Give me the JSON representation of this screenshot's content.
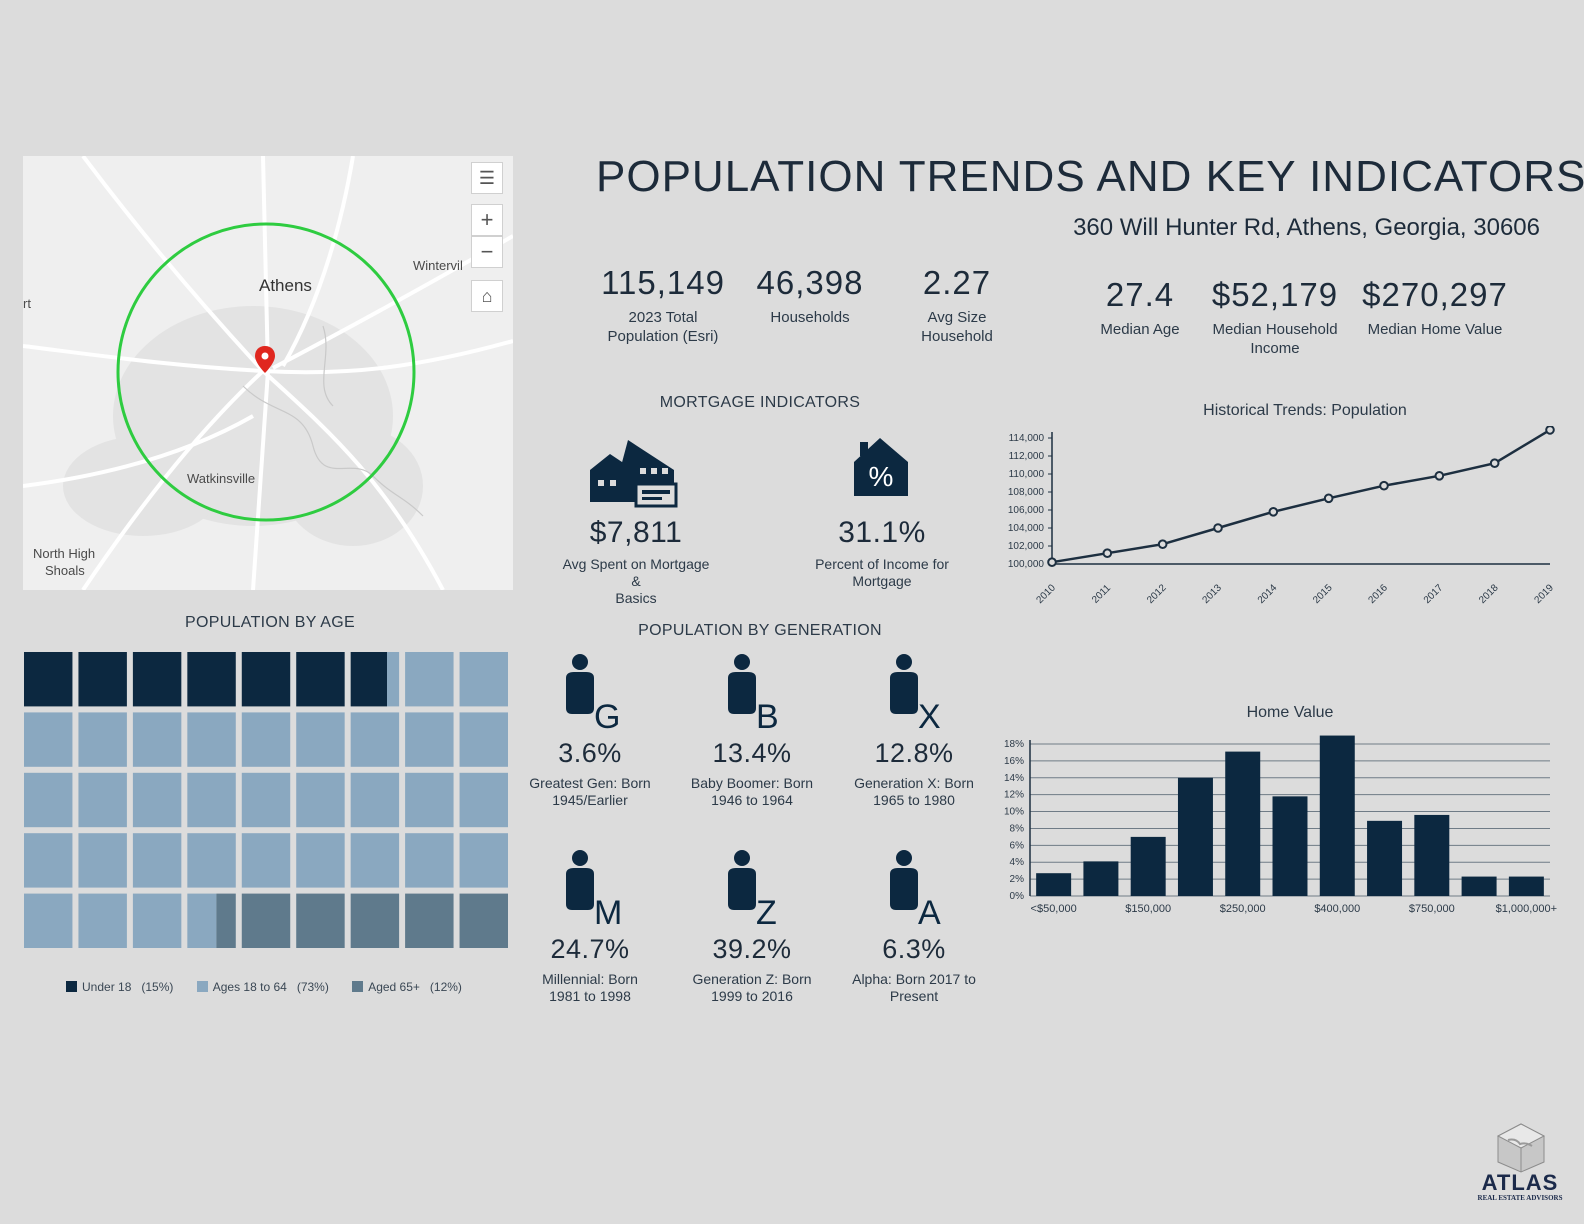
{
  "header": {
    "title": "POPULATION TRENDS AND KEY INDICATORS",
    "address": "360 Will Hunter Rd, Athens, Georgia, 30606"
  },
  "map": {
    "labels": {
      "athens": "Athens",
      "winterville": "Wintervil",
      "watkinsville": "Watkinsville",
      "north_high_shoals_1": "North High",
      "north_high_shoals_2": "Shoals",
      "edge": "rt"
    },
    "controls": {
      "list": "☰",
      "zoom_in": "+",
      "zoom_out": "−",
      "home": "⌂"
    },
    "ring_color": "#2ecc40",
    "pin_color": "#e0271f"
  },
  "stats": [
    {
      "value": "115,149",
      "label_1": "2023 Total",
      "label_2": "Population (Esri)"
    },
    {
      "value": "46,398",
      "label_1": "Households",
      "label_2": ""
    },
    {
      "value": "2.27",
      "label_1": "Avg Size",
      "label_2": "Household"
    },
    {
      "value": "27.4",
      "label_1": "Median Age",
      "label_2": ""
    },
    {
      "value": "$52,179",
      "label_1": "Median Household",
      "label_2": "Income"
    },
    {
      "value": "$270,297",
      "label_1": "Median Home Value",
      "label_2": ""
    }
  ],
  "mortgage": {
    "title": "MORTGAGE INDICATORS",
    "items": [
      {
        "value": "$7,811",
        "label_1": "Avg Spent on Mortgage &",
        "label_2": "Basics",
        "icon": "house-money-icon"
      },
      {
        "value": "31.1%",
        "label_1": "Percent of Income for",
        "label_2": "Mortgage",
        "icon": "house-percent-icon",
        "glyph": "%"
      }
    ]
  },
  "population_by_age": {
    "title": "POPULATION BY AGE",
    "legend": [
      {
        "label": "Under 18",
        "pct": "(15%)",
        "color": "#0c2840"
      },
      {
        "label": "Ages 18 to 64",
        "pct": "(73%)",
        "color": "#8aa8c0"
      },
      {
        "label": "Aged 65+",
        "pct": "(12%)",
        "color": "#5f7a8c"
      }
    ]
  },
  "generation": {
    "title": "POPULATION BY GENERATION",
    "items": [
      {
        "letter": "G",
        "value": "3.6%",
        "label_1": "Greatest Gen: Born",
        "label_2": "1945/Earlier"
      },
      {
        "letter": "B",
        "value": "13.4%",
        "label_1": "Baby Boomer: Born",
        "label_2": "1946 to 1964"
      },
      {
        "letter": "X",
        "value": "12.8%",
        "label_1": "Generation X: Born",
        "label_2": "1965 to 1980"
      },
      {
        "letter": "M",
        "value": "24.7%",
        "label_1": "Millennial: Born",
        "label_2": "1981 to 1998"
      },
      {
        "letter": "Z",
        "value": "39.2%",
        "label_1": "Generation Z: Born",
        "label_2": "1999 to 2016"
      },
      {
        "letter": "A",
        "value": "6.3%",
        "label_1": "Alpha: Born 2017 to",
        "label_2": "Present"
      }
    ]
  },
  "chart_data": [
    {
      "type": "waffle",
      "title": "POPULATION BY AGE",
      "grid": [
        9,
        5
      ],
      "series": [
        {
          "name": "Under 18",
          "value": 15,
          "color": "#0c2840"
        },
        {
          "name": "Ages 18 to 64",
          "value": 73,
          "color": "#8aa8c0"
        },
        {
          "name": "Aged 65+",
          "value": 12,
          "color": "#5f7a8c"
        }
      ]
    },
    {
      "type": "line",
      "title": "Historical Trends: Population",
      "x": [
        "2010",
        "2011",
        "2012",
        "2013",
        "2014",
        "2015",
        "2016",
        "2017",
        "2018",
        "2019"
      ],
      "y": [
        100200,
        101200,
        102200,
        104000,
        105800,
        107300,
        108700,
        109800,
        111200,
        114900
      ],
      "ylim": [
        100000,
        114000
      ],
      "yticks": [
        100000,
        102000,
        104000,
        106000,
        108000,
        110000,
        112000,
        114000
      ],
      "ytick_labels": [
        "100,000",
        "102,000",
        "104,000",
        "106,000",
        "108,000",
        "110,000",
        "112,000",
        "114,000"
      ],
      "color": "#1d2f40"
    },
    {
      "type": "bar",
      "title": "Home Value",
      "categories": [
        "<$50,000",
        "",
        "$150,000",
        "",
        "$250,000",
        "",
        "$400,000",
        "",
        "$750,000",
        "",
        "$1,000,000+"
      ],
      "values": [
        2.7,
        4.1,
        7.0,
        14.0,
        17.1,
        11.8,
        19.0,
        8.9,
        9.6,
        2.3,
        2.3
      ],
      "ylim": [
        0,
        18
      ],
      "yticks": [
        0,
        2,
        4,
        6,
        8,
        10,
        12,
        14,
        16,
        18
      ],
      "ytick_labels": [
        "0%",
        "2%",
        "4%",
        "6%",
        "8%",
        "10%",
        "12%",
        "14%",
        "16%",
        "18%"
      ],
      "color": "#0c2840"
    }
  ],
  "brand": {
    "name": "ATLAS",
    "tagline": "REAL ESTATE ADVISORS"
  }
}
